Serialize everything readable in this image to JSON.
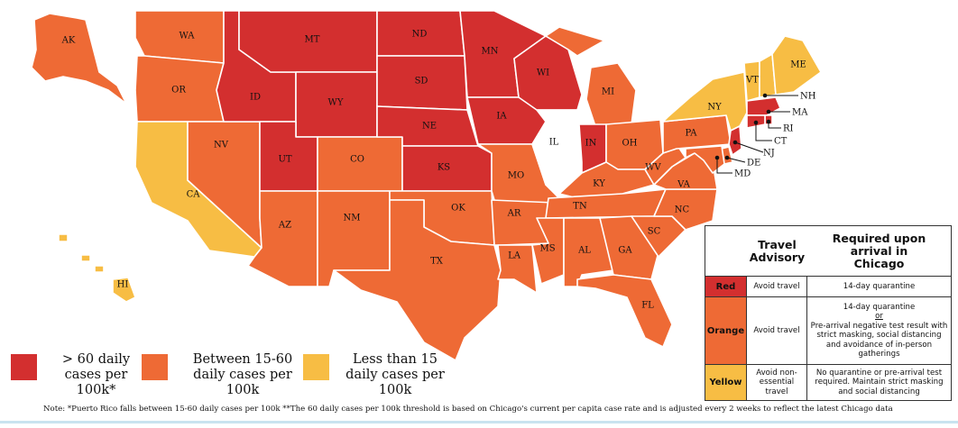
{
  "colors": {
    "red": "#d32f2f",
    "orange": "#ee6a35",
    "yellow": "#f7bd44",
    "white": "#ffffff"
  },
  "states": {
    "WA": {
      "label": "WA",
      "level": "orange"
    },
    "OR": {
      "label": "OR",
      "level": "orange"
    },
    "CA": {
      "label": "CA",
      "level": "yellow"
    },
    "NV": {
      "label": "NV",
      "level": "orange"
    },
    "ID": {
      "label": "ID",
      "level": "red"
    },
    "MT": {
      "label": "MT",
      "level": "red"
    },
    "WY": {
      "label": "WY",
      "level": "red"
    },
    "UT": {
      "label": "UT",
      "level": "red"
    },
    "AZ": {
      "label": "AZ",
      "level": "orange"
    },
    "CO": {
      "label": "CO",
      "level": "orange"
    },
    "NM": {
      "label": "NM",
      "level": "orange"
    },
    "ND": {
      "label": "ND",
      "level": "red"
    },
    "SD": {
      "label": "SD",
      "level": "red"
    },
    "NE": {
      "label": "NE",
      "level": "red"
    },
    "KS": {
      "label": "KS",
      "level": "red"
    },
    "OK": {
      "label": "OK",
      "level": "orange"
    },
    "TX": {
      "label": "TX",
      "level": "orange"
    },
    "MN": {
      "label": "MN",
      "level": "red"
    },
    "IA": {
      "label": "IA",
      "level": "red"
    },
    "MO": {
      "label": "MO",
      "level": "orange"
    },
    "AR": {
      "label": "AR",
      "level": "orange"
    },
    "LA": {
      "label": "LA",
      "level": "orange"
    },
    "WI": {
      "label": "WI",
      "level": "red"
    },
    "IL": {
      "label": "IL",
      "level": "white"
    },
    "MI": {
      "label": "MI",
      "level": "orange"
    },
    "IN": {
      "label": "IN",
      "level": "red"
    },
    "OH": {
      "label": "OH",
      "level": "orange"
    },
    "KY": {
      "label": "KY",
      "level": "orange"
    },
    "TN": {
      "label": "TN",
      "level": "orange"
    },
    "MS": {
      "label": "MS",
      "level": "orange"
    },
    "AL": {
      "label": "AL",
      "level": "orange"
    },
    "GA": {
      "label": "GA",
      "level": "orange"
    },
    "FL": {
      "label": "FL",
      "level": "orange"
    },
    "SC": {
      "label": "SC",
      "level": "orange"
    },
    "NC": {
      "label": "NC",
      "level": "orange"
    },
    "VA": {
      "label": "VA",
      "level": "orange"
    },
    "WV": {
      "label": "WV",
      "level": "orange"
    },
    "PA": {
      "label": "PA",
      "level": "orange"
    },
    "NY": {
      "label": "NY",
      "level": "yellow"
    },
    "VT": {
      "label": "VT",
      "level": "yellow"
    },
    "NH": {
      "label": "NH",
      "level": "yellow"
    },
    "ME": {
      "label": "ME",
      "level": "yellow"
    },
    "MA": {
      "label": "MA",
      "level": "red"
    },
    "RI": {
      "label": "RI",
      "level": "red"
    },
    "CT": {
      "label": "CT",
      "level": "red"
    },
    "NJ": {
      "label": "NJ",
      "level": "red"
    },
    "DE": {
      "label": "DE",
      "level": "orange"
    },
    "MD": {
      "label": "MD",
      "level": "orange"
    },
    "AK": {
      "label": "AK",
      "level": "orange"
    },
    "HI": {
      "label": "HI",
      "level": "yellow"
    }
  },
  "legend": {
    "red": "> 60 daily cases per 100k*",
    "orange": "Between 15-60 daily cases per 100k",
    "yellow": "Less than 15 daily cases per 100k"
  },
  "table": {
    "header_advisory": "Travel Advisory",
    "header_required": "Required upon arrival in Chicago",
    "rows": [
      {
        "level": "Red",
        "advisory": "Avoid travel",
        "required_lines": [
          "14-day quarantine"
        ]
      },
      {
        "level": "Orange",
        "advisory": "Avoid travel",
        "required_lines": [
          "14-day quarantine",
          "or",
          "Pre-arrival negative test result with strict masking, social distancing and avoidance of in-person gatherings"
        ]
      },
      {
        "level": "Yellow",
        "advisory": "Avoid non-essential travel",
        "required_lines": [
          "No quarantine or pre-arrival test required. Maintain strict masking and social distancing"
        ]
      }
    ]
  },
  "footnote": "Note: *Puerto Rico falls between 15-60 daily cases per 100k **The 60 daily cases per 100k threshold is based on Chicago's current per capita case rate and is adjusted every 2 weeks to reflect the latest Chicago data"
}
